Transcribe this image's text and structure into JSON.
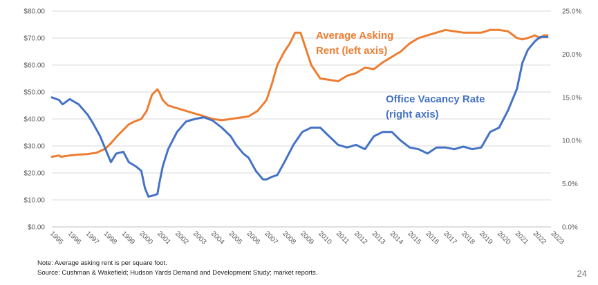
{
  "chart_data": {
    "type": "line",
    "title": "",
    "x_range": [
      1995,
      2022.9
    ],
    "grid": "horizontal",
    "left_axis": {
      "min": 0,
      "max": 80,
      "step": 10,
      "tick_labels": [
        "$0.00",
        "$10.00",
        "$20.00",
        "$30.00",
        "$40.00",
        "$50.00",
        "$60.00",
        "$70.00",
        "$80.00"
      ]
    },
    "right_axis": {
      "min": 0,
      "max": 25,
      "step": 5,
      "tick_labels": [
        "0.0%",
        "5.0%",
        "10.0%",
        "15.0%",
        "20.0%",
        "25.0%"
      ]
    },
    "x_tick_labels": [
      "1995",
      "1996",
      "1997",
      "1998",
      "1999",
      "2000",
      "2001",
      "2002",
      "2003",
      "2004",
      "2005",
      "2006",
      "2007",
      "2008",
      "2009",
      "2010",
      "2011",
      "2012",
      "2013",
      "2014",
      "2015",
      "2016",
      "2017",
      "2018",
      "2019",
      "2020",
      "2021",
      "2022",
      "2023"
    ],
    "series": [
      {
        "name": "Average Asking Rent",
        "axis": "left",
        "color": "#ED7D31",
        "x": [
          1995,
          1995.4,
          1995.5,
          1996,
          1996.5,
          1997,
          1997.5,
          1998,
          1998.3,
          1998.7,
          1999,
          1999.3,
          1999.6,
          2000,
          2000.3,
          2000.6,
          2000.9,
          2001,
          2001.2,
          2001.5,
          2002,
          2002.5,
          2003,
          2003.5,
          2004,
          2004.5,
          2005,
          2005.5,
          2006,
          2006.5,
          2007,
          2007.3,
          2007.6,
          2008,
          2008.3,
          2008.6,
          2008.9,
          2009.2,
          2009.5,
          2010,
          2010.5,
          2011,
          2011.5,
          2012,
          2012.5,
          2013,
          2013.5,
          2014,
          2014.5,
          2015,
          2015.5,
          2016,
          2016.5,
          2017,
          2017.5,
          2018,
          2018.5,
          2019,
          2019.5,
          2020,
          2020.5,
          2021,
          2021.3,
          2021.6,
          2022,
          2022.3,
          2022.5,
          2022.7
        ],
        "y": [
          26,
          26.5,
          26,
          26.5,
          26.8,
          27,
          27.5,
          29,
          31,
          34,
          36,
          38,
          39,
          40,
          43,
          49,
          51,
          50,
          47,
          45,
          44,
          43,
          42,
          41,
          40,
          39.5,
          40,
          40.5,
          41,
          43,
          47,
          53,
          60,
          65,
          68,
          72,
          72,
          66,
          60,
          55,
          54.5,
          54,
          56,
          57,
          59,
          58.5,
          61,
          63,
          65,
          68,
          70,
          71,
          72,
          73,
          72.5,
          72,
          72,
          72,
          73,
          73,
          72.5,
          70,
          69.5,
          70,
          71,
          70,
          71,
          71
        ]
      },
      {
        "name": "Office Vacancy Rate",
        "axis": "right",
        "color": "#4472C4",
        "x": [
          1995,
          1995.4,
          1995.6,
          1996,
          1996.5,
          1997,
          1997.3,
          1997.7,
          1998,
          1998.3,
          1998.6,
          1999,
          1999.3,
          1999.7,
          2000,
          2000.2,
          2000.4,
          2000.6,
          2000.9,
          2001,
          2001.2,
          2001.5,
          2002,
          2002.5,
          2003,
          2003.5,
          2004,
          2004.5,
          2005,
          2005.3,
          2005.7,
          2006,
          2006.4,
          2006.8,
          2007,
          2007.3,
          2007.6,
          2008,
          2008.5,
          2009,
          2009.5,
          2010,
          2010.5,
          2011,
          2011.5,
          2012,
          2012.5,
          2013,
          2013.5,
          2014,
          2014.5,
          2015,
          2015.5,
          2016,
          2016.5,
          2017,
          2017.5,
          2018,
          2018.5,
          2019,
          2019.5,
          2020,
          2020.5,
          2021,
          2021.3,
          2021.6,
          2022,
          2022.3,
          2022.5,
          2022.7
        ],
        "y": [
          15,
          14.7,
          14.2,
          14.8,
          14.2,
          13,
          12,
          10.5,
          9,
          7.5,
          8.5,
          8.7,
          7.5,
          7,
          6.5,
          4.5,
          3.5,
          3.6,
          3.8,
          5,
          7,
          9,
          11,
          12.2,
          12.5,
          12.7,
          12.3,
          11.5,
          10.5,
          9.5,
          8.5,
          8,
          6.5,
          5.5,
          5.5,
          5.8,
          6,
          7.5,
          9.5,
          11,
          11.5,
          11.5,
          10.5,
          9.5,
          9.2,
          9.5,
          9,
          10.5,
          11,
          11,
          10,
          9.2,
          9,
          8.5,
          9.2,
          9.2,
          9,
          9.3,
          9,
          9.2,
          11,
          11.5,
          13.5,
          16,
          19,
          20.5,
          21.5,
          22,
          22,
          22
        ]
      }
    ],
    "annotations": [
      {
        "lines": [
          "Average Asking",
          "Rent (left axis)"
        ],
        "series": "Average Asking Rent"
      },
      {
        "lines": [
          "Office Vacancy Rate",
          "(right axis)"
        ],
        "series": "Office Vacancy Rate"
      }
    ]
  },
  "footer": {
    "note": "Note: Average asking rent is per square foot.",
    "source": "Source: Cushman & Wakefield; Hudson Yards Demand and Development Study; market reports.",
    "page_number": "24"
  }
}
